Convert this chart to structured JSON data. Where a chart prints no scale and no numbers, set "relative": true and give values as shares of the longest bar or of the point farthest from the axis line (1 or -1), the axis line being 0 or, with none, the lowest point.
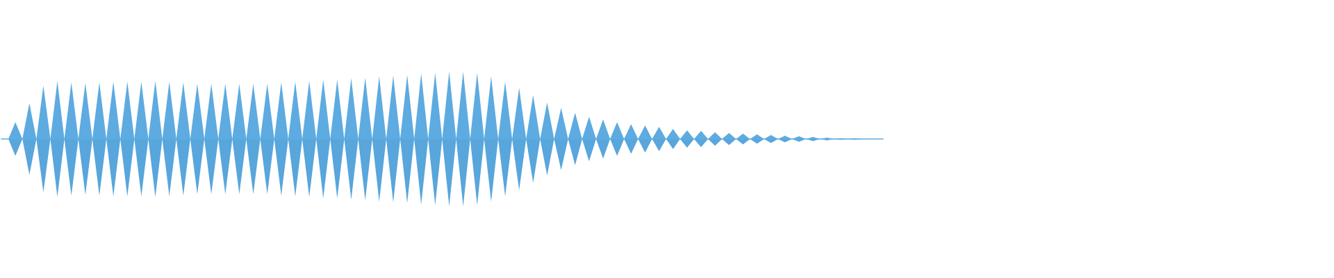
{
  "chart_data": {
    "type": "area",
    "relative": true,
    "categories": [
      null,
      null,
      null,
      null,
      null,
      null,
      null,
      null,
      null,
      null,
      null,
      null,
      null,
      null,
      null,
      null,
      null,
      null,
      null,
      null,
      null,
      null,
      null,
      null,
      null,
      null,
      null,
      null,
      null,
      null,
      null,
      null,
      null,
      null,
      null,
      null,
      null,
      null,
      null,
      null,
      null,
      null,
      null,
      null,
      null,
      null,
      null,
      null,
      null,
      null,
      null,
      null,
      null,
      null,
      null,
      null,
      null,
      null,
      null,
      null,
      null,
      null,
      null,
      null,
      null,
      null,
      null,
      null,
      null,
      null,
      null,
      null,
      null,
      null,
      null,
      null,
      null,
      null,
      null,
      null,
      null,
      null,
      null,
      null,
      null,
      null,
      null,
      null,
      null,
      null,
      null,
      null,
      null,
      null,
      null,
      null,
      null,
      null,
      null,
      null,
      null,
      null,
      null,
      null,
      null,
      null,
      null,
      null,
      null,
      null,
      null,
      null,
      null,
      null,
      null,
      null,
      null,
      null,
      null,
      null,
      null,
      null,
      null,
      null,
      null,
      null,
      null
    ],
    "series": [
      {
        "color": "#5dabe1",
        "values": [
          0,
          0,
          0.25,
          0,
          0.53,
          0,
          0.79,
          0,
          0.86,
          0,
          0.84,
          0,
          0.83,
          0,
          0.84,
          0,
          0.85,
          0,
          0.85,
          0,
          0.85,
          0,
          0.86,
          0,
          0.85,
          0,
          0.84,
          0,
          0.82,
          0,
          0.82,
          0,
          0.82,
          0,
          0.82,
          0,
          0.82,
          0,
          0.82,
          0,
          0.84,
          0,
          0.85,
          0,
          0.86,
          0,
          0.88,
          0,
          0.88,
          0,
          0.9,
          0,
          0.91,
          0,
          0.93,
          0,
          0.94,
          0,
          0.95,
          0,
          0.97,
          0,
          0.98,
          0,
          1.0,
          0,
          1.0,
          0,
          0.98,
          0,
          0.93,
          0,
          0.85,
          0,
          0.76,
          0,
          0.65,
          0,
          0.54,
          0,
          0.46,
          0,
          0.39,
          0,
          0.33,
          0,
          0.29,
          0,
          0.25,
          0,
          0.22,
          0,
          0.2,
          0,
          0.18,
          0,
          0.15,
          0,
          0.13,
          0,
          0.12,
          0,
          0.1,
          0,
          0.09,
          0,
          0.08,
          0,
          0.07,
          0,
          0.06,
          0,
          0.05,
          0,
          0.04,
          0,
          0.03,
          0,
          0.02,
          0,
          0.01,
          0,
          0.01,
          0,
          0,
          0,
          0
        ]
      },
      {
        "color": "#58a6dc",
        "values": [
          0,
          0,
          -0.25,
          0,
          -0.53,
          0,
          -0.79,
          0,
          -0.86,
          0,
          -0.84,
          0,
          -0.83,
          0,
          -0.84,
          0,
          -0.85,
          0,
          -0.85,
          0,
          -0.85,
          0,
          -0.86,
          0,
          -0.85,
          0,
          -0.84,
          0,
          -0.82,
          0,
          -0.82,
          0,
          -0.82,
          0,
          -0.82,
          0,
          -0.82,
          0,
          -0.82,
          0,
          -0.84,
          0,
          -0.85,
          0,
          -0.86,
          0,
          -0.88,
          0,
          -0.88,
          0,
          -0.9,
          0,
          -0.91,
          0,
          -0.93,
          0,
          -0.94,
          0,
          -0.95,
          0,
          -0.97,
          0,
          -0.98,
          0,
          -1.0,
          0,
          -1.0,
          0,
          -0.98,
          0,
          -0.93,
          0,
          -0.85,
          0,
          -0.76,
          0,
          -0.65,
          0,
          -0.54,
          0,
          -0.46,
          0,
          -0.39,
          0,
          -0.33,
          0,
          -0.29,
          0,
          -0.25,
          0,
          -0.22,
          0,
          -0.2,
          0,
          -0.18,
          0,
          -0.15,
          0,
          -0.13,
          0,
          -0.12,
          0,
          -0.1,
          0,
          -0.09,
          0,
          -0.08,
          0,
          -0.07,
          0,
          -0.06,
          0,
          -0.05,
          0,
          -0.04,
          0,
          -0.03,
          0,
          -0.02,
          0,
          -0.01,
          0,
          -0.01,
          0,
          0,
          0,
          0
        ]
      }
    ]
  }
}
